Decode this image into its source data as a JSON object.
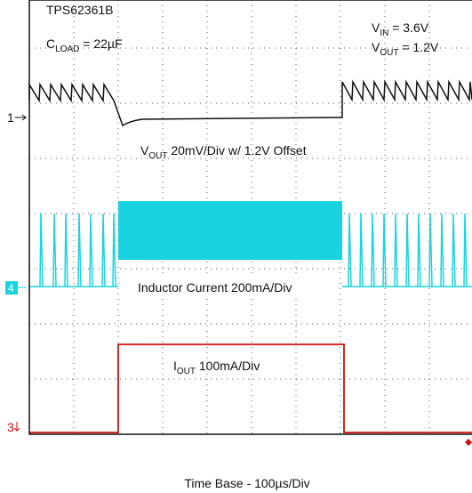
{
  "header": {
    "device": "TPS62361B",
    "load": {
      "symbol": "C",
      "subscript": "LOAD",
      "value": " = 22µF"
    }
  },
  "conditions": [
    {
      "symbol": "V",
      "subscript": "IN",
      "value": " = 3.6V"
    },
    {
      "symbol": "V",
      "subscript": "OUT",
      "value": " = 1.2V"
    }
  ],
  "traces": [
    {
      "marker": "1",
      "label": {
        "symbol": "V",
        "subscript": "OUT",
        "value": " 20mV/Div w/ 1.2V Offset"
      }
    },
    {
      "marker": "4",
      "label": "Inductor Current 200mA/Div"
    },
    {
      "marker": "3",
      "label": {
        "symbol": "I",
        "subscript": "OUT",
        "value": " 100mA/Div"
      }
    }
  ],
  "time_base": "Time Base - 100µs/Div"
}
